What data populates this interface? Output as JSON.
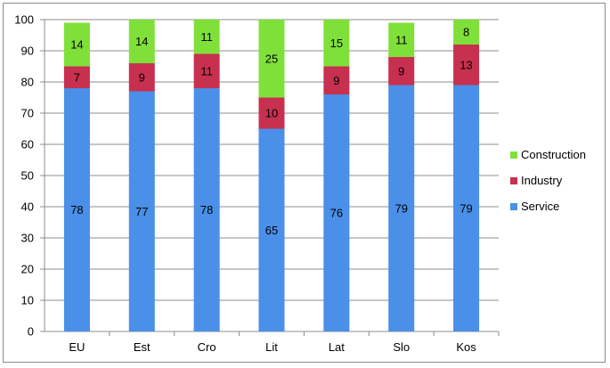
{
  "chart_data": {
    "type": "bar",
    "stacked": true,
    "categories": [
      "EU",
      "Est",
      "Cro",
      "Lit",
      "Lat",
      "Slo",
      "Kos"
    ],
    "series": [
      {
        "name": "Service",
        "values": [
          78,
          77,
          78,
          65,
          76,
          79,
          79
        ],
        "color": "#4a8fe8"
      },
      {
        "name": "Industry",
        "values": [
          7,
          9,
          11,
          10,
          9,
          9,
          13
        ],
        "color": "#c8304f"
      },
      {
        "name": "Construction",
        "values": [
          14,
          14,
          11,
          25,
          15,
          11,
          8
        ],
        "color": "#80e03a"
      }
    ],
    "ylim": [
      0,
      100
    ],
    "yticks": [
      0,
      10,
      20,
      30,
      40,
      50,
      60,
      70,
      80,
      90,
      100
    ],
    "grid": true,
    "legend_position": "right",
    "legend_order": [
      "Construction",
      "Industry",
      "Service"
    ]
  }
}
